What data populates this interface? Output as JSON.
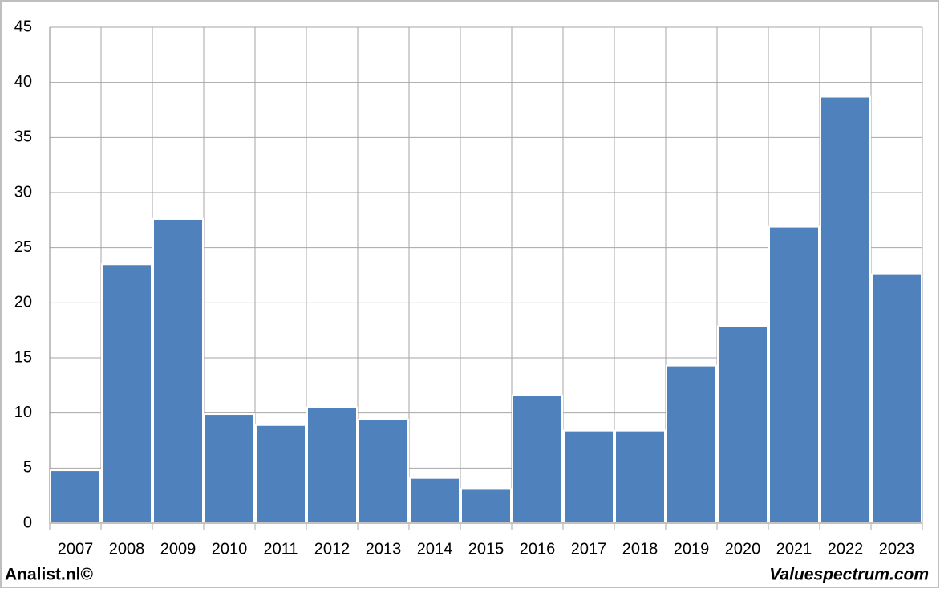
{
  "chart_data": {
    "type": "bar",
    "categories": [
      "2007",
      "2008",
      "2009",
      "2010",
      "2011",
      "2012",
      "2013",
      "2014",
      "2015",
      "2016",
      "2017",
      "2018",
      "2019",
      "2020",
      "2021",
      "2022",
      "2023"
    ],
    "values": [
      4.8,
      23.5,
      27.6,
      9.9,
      8.9,
      10.5,
      9.4,
      4.1,
      3.1,
      11.6,
      8.4,
      8.4,
      14.3,
      17.9,
      26.9,
      38.7,
      22.6
    ],
    "color": "#4f81bd",
    "ylim": [
      0,
      45
    ],
    "yticks": [
      0,
      5,
      10,
      15,
      20,
      25,
      30,
      35,
      40,
      45
    ],
    "grid": true,
    "credits": [
      "Analist.nl©",
      "Valuespectrum.com"
    ]
  }
}
